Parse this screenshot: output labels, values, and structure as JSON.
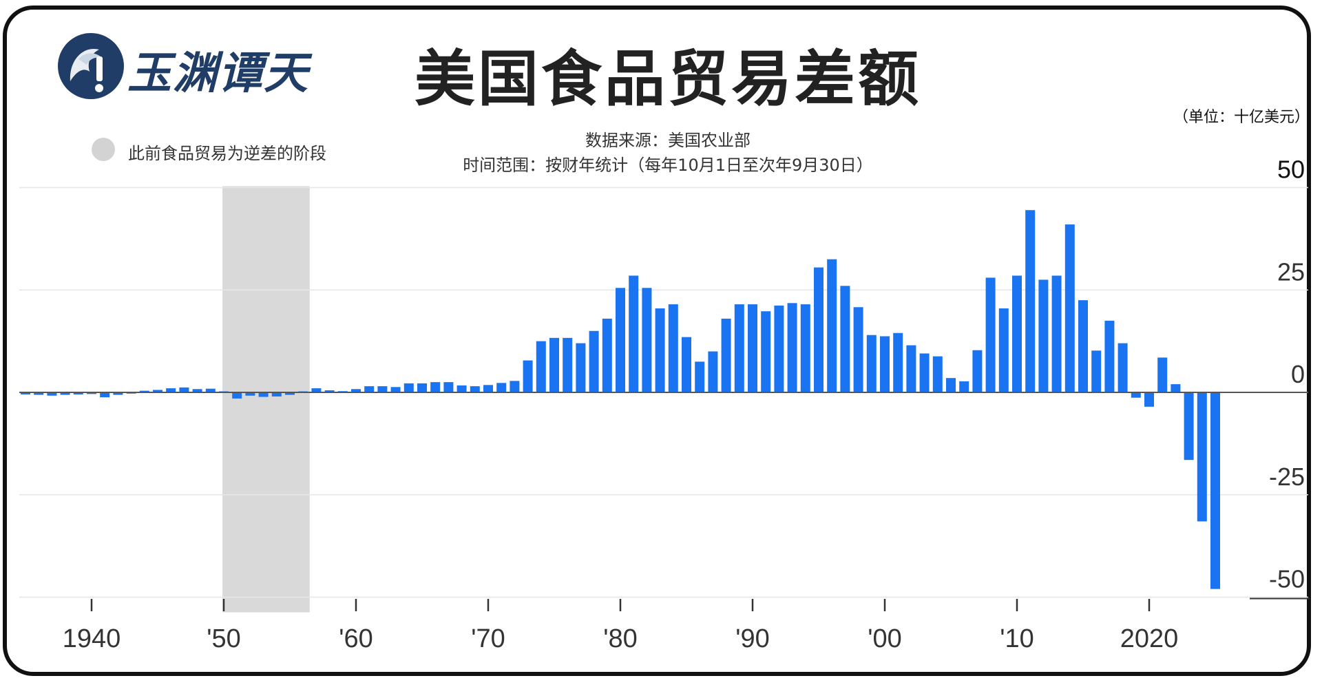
{
  "header": {
    "logo_text": "玉渊谭天",
    "title": "美国食品贸易差额",
    "unit": "（单位：十亿美元）"
  },
  "legend": {
    "shaded_label": "此前食品贸易为逆差的阶段"
  },
  "source": {
    "line1": "数据来源：美国农业部",
    "line2": "时间范围：按财年统计（每年10月1日至次年9月30日）"
  },
  "colors": {
    "bar": "#1a73f0",
    "shade": "#d9d9d9",
    "grid": "#e6e6e6",
    "zero": "#555555",
    "axis_text": "#333333"
  },
  "chart_data": {
    "type": "bar",
    "title": "美国食品贸易差额",
    "ylabel": "（单位：十亿美元）",
    "ylim": [
      -50,
      50
    ],
    "yticks": [
      50,
      25,
      0,
      -25,
      -50
    ],
    "xlim": [
      1935,
      2029
    ],
    "xticks": [
      {
        "year": 1940,
        "label": "1940"
      },
      {
        "year": 1950,
        "label": "'50"
      },
      {
        "year": 1960,
        "label": "'60"
      },
      {
        "year": 1970,
        "label": "'70"
      },
      {
        "year": 1980,
        "label": "'80"
      },
      {
        "year": 1990,
        "label": "'90"
      },
      {
        "year": 2000,
        "label": "'00"
      },
      {
        "year": 2010,
        "label": "'10"
      },
      {
        "year": 2020,
        "label": "2020"
      }
    ],
    "shaded_range": [
      1949.9,
      1956.5
    ],
    "years": [
      1935,
      1936,
      1937,
      1938,
      1939,
      1940,
      1941,
      1942,
      1943,
      1944,
      1945,
      1946,
      1947,
      1948,
      1949,
      1950,
      1951,
      1952,
      1953,
      1954,
      1955,
      1956,
      1957,
      1958,
      1959,
      1960,
      1961,
      1962,
      1963,
      1964,
      1965,
      1966,
      1967,
      1968,
      1969,
      1970,
      1971,
      1972,
      1973,
      1974,
      1975,
      1976,
      1977,
      1978,
      1979,
      1980,
      1981,
      1982,
      1983,
      1984,
      1985,
      1986,
      1987,
      1988,
      1989,
      1990,
      1991,
      1992,
      1993,
      1994,
      1995,
      1996,
      1997,
      1998,
      1999,
      2000,
      2001,
      2002,
      2003,
      2004,
      2005,
      2006,
      2007,
      2008,
      2009,
      2010,
      2011,
      2012,
      2013,
      2014,
      2015,
      2016,
      2017,
      2018,
      2019,
      2020,
      2021,
      2022,
      2023,
      2024,
      2025
    ],
    "values": [
      -0.5,
      -0.6,
      -0.8,
      -0.6,
      -0.5,
      -0.4,
      -1.2,
      -0.6,
      -0.3,
      0.4,
      0.6,
      1.0,
      1.2,
      0.8,
      0.9,
      0.0,
      -1.5,
      -0.8,
      -1.1,
      -1.0,
      -0.6,
      0.0,
      1.0,
      0.5,
      0.3,
      0.8,
      1.5,
      1.5,
      1.3,
      2.2,
      2.2,
      2.5,
      2.5,
      1.7,
      1.5,
      1.8,
      2.3,
      2.8,
      7.8,
      12.5,
      13.3,
      13.3,
      12.0,
      15.0,
      18.0,
      25.5,
      28.5,
      25.5,
      20.5,
      21.5,
      13.5,
      7.5,
      10.0,
      18.0,
      21.5,
      21.5,
      19.8,
      21.2,
      21.8,
      21.5,
      30.5,
      32.5,
      26.0,
      20.8,
      14.0,
      13.7,
      14.5,
      11.5,
      9.5,
      8.8,
      3.5,
      2.7,
      10.3,
      28.0,
      20.5,
      28.5,
      44.5,
      27.5,
      28.5,
      41.0,
      22.5,
      10.2,
      17.5,
      12.0,
      -1.3,
      -3.5,
      8.5,
      2.0,
      -16.5,
      -31.5,
      -48.0
    ]
  }
}
